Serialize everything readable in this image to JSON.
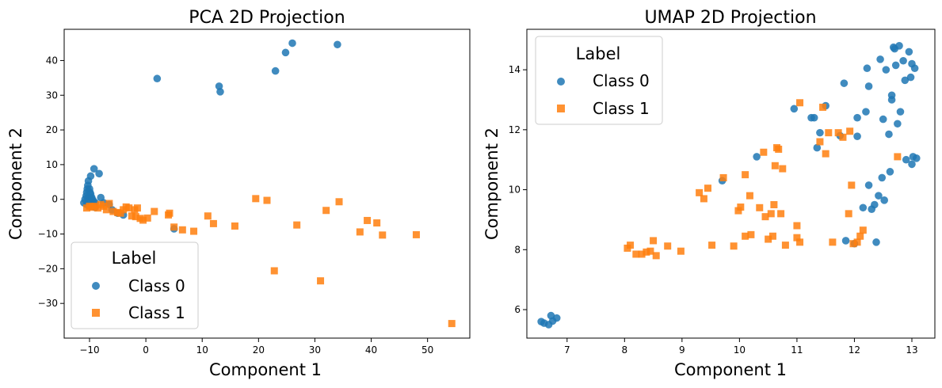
{
  "chart_data": [
    {
      "type": "scatter",
      "title": "PCA 2D Projection",
      "xlabel": "Component 1",
      "ylabel": "Component 2",
      "xlim": [
        -14.5,
        57.5
      ],
      "ylim": [
        -40,
        49
      ],
      "xticks": [
        -10,
        0,
        10,
        20,
        30,
        40,
        50
      ],
      "yticks": [
        -30,
        -20,
        -10,
        0,
        10,
        20,
        30,
        40
      ],
      "xtick_labels": [
        "−10",
        "0",
        "10",
        "20",
        "30",
        "40",
        "50"
      ],
      "ytick_labels": [
        "−30",
        "−20",
        "−10",
        "0",
        "10",
        "20",
        "30",
        "40"
      ],
      "legend": {
        "title": "Label",
        "position": "lower-left"
      },
      "series": [
        {
          "name": "Class 0",
          "marker": "circle",
          "color": "#1f77b4",
          "points": [
            [
              -11,
              -1
            ],
            [
              -10.8,
              0
            ],
            [
              -10.6,
              1
            ],
            [
              -10.5,
              2
            ],
            [
              -10.4,
              3
            ],
            [
              -10.3,
              4
            ],
            [
              -10.2,
              0.5
            ],
            [
              -10.1,
              -0.5
            ],
            [
              -10,
              3
            ],
            [
              -9.9,
              2
            ],
            [
              -9.8,
              1.5
            ],
            [
              -9.6,
              0.5
            ],
            [
              -9.5,
              0
            ],
            [
              -9.3,
              -0.5
            ],
            [
              -9,
              -1
            ],
            [
              -10.2,
              5.3
            ],
            [
              -9.8,
              6.7
            ],
            [
              -9.2,
              8.8
            ],
            [
              -8.3,
              7.4
            ],
            [
              -8,
              0.5
            ],
            [
              -7.5,
              -1
            ],
            [
              -6.5,
              -1.5
            ],
            [
              -6,
              -3
            ],
            [
              -5,
              -4
            ],
            [
              -4,
              -4.5
            ],
            [
              -10.5,
              -1.5
            ],
            [
              -10,
              -2
            ],
            [
              -9,
              -2.3
            ],
            [
              2,
              34.8
            ],
            [
              13,
              32.6
            ],
            [
              13.2,
              31
            ],
            [
              23,
              37
            ],
            [
              24.8,
              42.3
            ],
            [
              26,
              45
            ],
            [
              34,
              44.6
            ],
            [
              5,
              -8.5
            ]
          ]
        },
        {
          "name": "Class 1",
          "marker": "square",
          "color": "#ff7f0e",
          "points": [
            [
              -10.5,
              -2.5
            ],
            [
              -10,
              -2
            ],
            [
              -9.5,
              -2.3
            ],
            [
              -9,
              -2
            ],
            [
              -8.5,
              -2.5
            ],
            [
              -8,
              -1.5
            ],
            [
              -7.5,
              -2
            ],
            [
              -7,
              -3
            ],
            [
              -6.5,
              -1.2
            ],
            [
              -5.8,
              -3.5
            ],
            [
              -5,
              -3.8
            ],
            [
              -4.5,
              -4
            ],
            [
              -4,
              -3
            ],
            [
              -3.5,
              -2.2
            ],
            [
              -3,
              -2.5
            ],
            [
              -2.5,
              -4.8
            ],
            [
              -2,
              -3
            ],
            [
              -1.8,
              -5
            ],
            [
              -1.5,
              -2.5
            ],
            [
              -1,
              -5.5
            ],
            [
              -0.5,
              -6
            ],
            [
              0.3,
              -5.4
            ],
            [
              1.5,
              -3.5
            ],
            [
              4,
              -4.5
            ],
            [
              4.2,
              -4
            ],
            [
              5,
              -8
            ],
            [
              6.5,
              -8.8
            ],
            [
              8.5,
              -9.2
            ],
            [
              11,
              -4.8
            ],
            [
              12,
              -7
            ],
            [
              15.8,
              -7.7
            ],
            [
              19.5,
              0.2
            ],
            [
              21.5,
              -0.3
            ],
            [
              22.8,
              -20.6
            ],
            [
              26.8,
              -7.4
            ],
            [
              31,
              -23.5
            ],
            [
              32,
              -3.2
            ],
            [
              34.3,
              -0.7
            ],
            [
              38,
              -9.4
            ],
            [
              39.3,
              -6.1
            ],
            [
              41,
              -6.8
            ],
            [
              42,
              -10.3
            ],
            [
              48,
              -10.2
            ],
            [
              54.3,
              -35.8
            ]
          ]
        }
      ]
    },
    {
      "type": "scatter",
      "title": "UMAP 2D Projection",
      "xlabel": "Component 1",
      "ylabel": "Component 2",
      "xlim": [
        6.3,
        13.4
      ],
      "ylim": [
        5.05,
        15.35
      ],
      "xticks": [
        7,
        8,
        9,
        10,
        11,
        12,
        13
      ],
      "yticks": [
        6,
        8,
        10,
        12,
        14
      ],
      "xtick_labels": [
        "7",
        "8",
        "9",
        "10",
        "11",
        "12",
        "13"
      ],
      "ytick_labels": [
        "6",
        "8",
        "10",
        "12",
        "14"
      ],
      "legend": {
        "title": "Label",
        "position": "upper-left"
      },
      "series": [
        {
          "name": "Class 0",
          "marker": "circle",
          "color": "#1f77b4",
          "points": [
            [
              6.55,
              5.6
            ],
            [
              6.6,
              5.55
            ],
            [
              6.68,
              5.5
            ],
            [
              6.72,
              5.8
            ],
            [
              6.75,
              5.62
            ],
            [
              6.82,
              5.72
            ],
            [
              9.7,
              10.3
            ],
            [
              10.3,
              11.1
            ],
            [
              10.95,
              12.7
            ],
            [
              11.25,
              12.4
            ],
            [
              11.3,
              12.4
            ],
            [
              11.35,
              11.4
            ],
            [
              11.4,
              11.9
            ],
            [
              11.5,
              12.8
            ],
            [
              11.75,
              11.8
            ],
            [
              11.82,
              13.55
            ],
            [
              11.85,
              8.3
            ],
            [
              12.0,
              8.2
            ],
            [
              12.05,
              11.78
            ],
            [
              12.05,
              12.4
            ],
            [
              12.15,
              9.4
            ],
            [
              12.2,
              12.6
            ],
            [
              12.22,
              14.05
            ],
            [
              12.25,
              13.45
            ],
            [
              12.25,
              10.15
            ],
            [
              12.3,
              9.35
            ],
            [
              12.35,
              9.5
            ],
            [
              12.38,
              8.25
            ],
            [
              12.42,
              9.8
            ],
            [
              12.45,
              14.35
            ],
            [
              12.48,
              10.4
            ],
            [
              12.5,
              12.35
            ],
            [
              12.52,
              9.65
            ],
            [
              12.55,
              14.0
            ],
            [
              12.6,
              11.85
            ],
            [
              12.62,
              10.6
            ],
            [
              12.65,
              13.0
            ],
            [
              12.65,
              13.15
            ],
            [
              12.68,
              14.75
            ],
            [
              12.7,
              14.7
            ],
            [
              12.72,
              14.15
            ],
            [
              12.75,
              12.2
            ],
            [
              12.78,
              14.8
            ],
            [
              12.8,
              12.6
            ],
            [
              12.85,
              14.3
            ],
            [
              12.88,
              13.65
            ],
            [
              12.9,
              11.0
            ],
            [
              12.95,
              14.6
            ],
            [
              12.98,
              13.75
            ],
            [
              13.0,
              14.2
            ],
            [
              13.0,
              10.85
            ],
            [
              13.02,
              11.1
            ],
            [
              13.05,
              14.05
            ],
            [
              13.08,
              11.05
            ]
          ]
        },
        {
          "name": "Class 1",
          "marker": "square",
          "color": "#ff7f0e",
          "points": [
            [
              8.05,
              8.05
            ],
            [
              8.1,
              8.15
            ],
            [
              8.2,
              7.85
            ],
            [
              8.3,
              7.85
            ],
            [
              8.38,
              7.92
            ],
            [
              8.45,
              7.95
            ],
            [
              8.5,
              8.3
            ],
            [
              8.55,
              7.8
            ],
            [
              8.75,
              8.12
            ],
            [
              8.98,
              7.95
            ],
            [
              9.3,
              9.9
            ],
            [
              9.38,
              9.7
            ],
            [
              9.45,
              10.05
            ],
            [
              9.52,
              8.15
            ],
            [
              9.72,
              10.4
            ],
            [
              9.9,
              8.12
            ],
            [
              9.98,
              9.3
            ],
            [
              10.02,
              9.42
            ],
            [
              10.1,
              8.45
            ],
            [
              10.1,
              10.5
            ],
            [
              10.18,
              9.8
            ],
            [
              10.2,
              8.5
            ],
            [
              10.35,
              9.4
            ],
            [
              10.42,
              11.25
            ],
            [
              10.45,
              9.1
            ],
            [
              10.5,
              8.35
            ],
            [
              10.55,
              9.2
            ],
            [
              10.58,
              8.45
            ],
            [
              10.6,
              9.5
            ],
            [
              10.62,
              10.8
            ],
            [
              10.65,
              11.4
            ],
            [
              10.68,
              11.35
            ],
            [
              10.72,
              9.2
            ],
            [
              10.75,
              10.7
            ],
            [
              10.8,
              8.15
            ],
            [
              11.0,
              8.8
            ],
            [
              11.0,
              8.4
            ],
            [
              11.05,
              8.25
            ],
            [
              11.05,
              12.9
            ],
            [
              11.4,
              11.6
            ],
            [
              11.45,
              12.75
            ],
            [
              11.5,
              11.2
            ],
            [
              11.55,
              11.9
            ],
            [
              11.62,
              8.25
            ],
            [
              11.72,
              11.9
            ],
            [
              11.8,
              11.75
            ],
            [
              11.9,
              9.2
            ],
            [
              11.92,
              11.95
            ],
            [
              11.95,
              10.15
            ],
            [
              11.98,
              8.2
            ],
            [
              12.05,
              8.25
            ],
            [
              12.1,
              8.45
            ],
            [
              12.15,
              8.65
            ],
            [
              12.75,
              11.1
            ]
          ]
        }
      ]
    }
  ]
}
